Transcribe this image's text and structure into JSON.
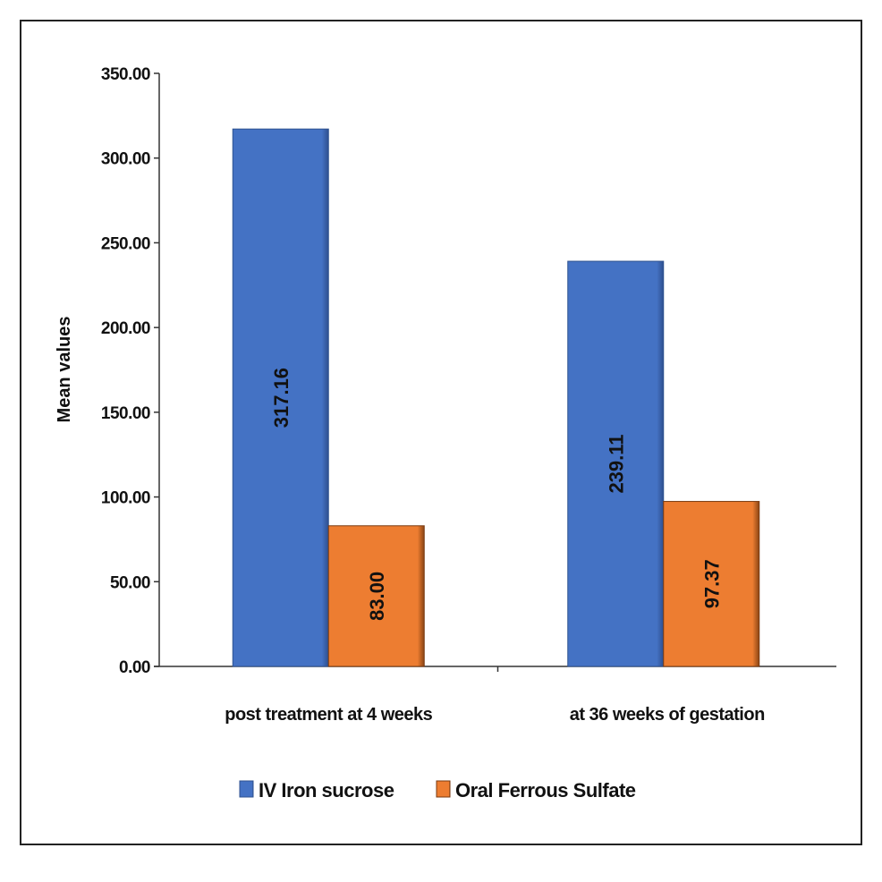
{
  "chart_data": {
    "type": "bar",
    "categories": [
      "post treatment at 4 weeks",
      "at 36 weeks of gestation"
    ],
    "series": [
      {
        "name": "IV Iron sucrose",
        "values": [
          317.16,
          239.11
        ],
        "labels": [
          "317.16",
          "239.11"
        ],
        "color": "#4472C4"
      },
      {
        "name": "Oral Ferrous Sulfate",
        "values": [
          83.0,
          97.37
        ],
        "labels": [
          "83.00",
          "97.37"
        ],
        "color": "#ED7D31"
      }
    ],
    "ylabel": "Mean values",
    "xlabel": "",
    "ylim": [
      0,
      350
    ],
    "yticks": [
      "0.00",
      "50.00",
      "100.00",
      "150.00",
      "200.00",
      "250.00",
      "300.00",
      "350.00"
    ],
    "grid": false,
    "legend": "bottom"
  }
}
